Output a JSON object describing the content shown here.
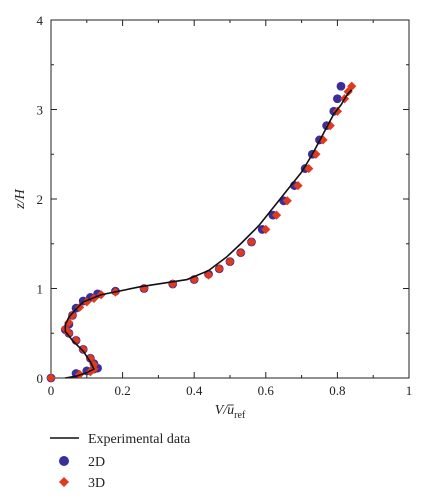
{
  "chart_data": {
    "type": "scatter",
    "xlabel": "V/ū_ref",
    "xlabel_main": "V/",
    "xlabel_u": "u",
    "xlabel_sub": "ref",
    "ylabel": "z/H",
    "xlim": [
      0,
      1
    ],
    "ylim": [
      0,
      4
    ],
    "xticks": [
      "0",
      "0.2",
      "0.4",
      "0.6",
      "0.8",
      "1"
    ],
    "yticks": [
      "0",
      "1",
      "2",
      "3",
      "4"
    ],
    "grid": false,
    "legend_position": "bottom-left",
    "colors": {
      "experimental": "#111111",
      "s2d": "#3a2e9a",
      "s3d": "#e03a1e"
    },
    "series": [
      {
        "name": "Experimental data",
        "kind": "line",
        "x": [
          0.04,
          0.07,
          0.1,
          0.12,
          0.11,
          0.09,
          0.06,
          0.04,
          0.04,
          0.05,
          0.07,
          0.09,
          0.14,
          0.25,
          0.38,
          0.44,
          0.49,
          0.53,
          0.58,
          0.62,
          0.66,
          0.7,
          0.73,
          0.75,
          0.77,
          0.79,
          0.81,
          0.82,
          0.83,
          0.84
        ],
        "y": [
          0.0,
          0.02,
          0.06,
          0.1,
          0.18,
          0.3,
          0.42,
          0.52,
          0.6,
          0.68,
          0.77,
          0.85,
          0.93,
          1.02,
          1.1,
          1.2,
          1.35,
          1.5,
          1.7,
          1.9,
          2.1,
          2.3,
          2.5,
          2.65,
          2.8,
          2.95,
          3.05,
          3.12,
          3.18,
          3.22
        ]
      },
      {
        "name": "2D",
        "kind": "circle",
        "x": [
          0.0,
          0.07,
          0.1,
          0.12,
          0.13,
          0.12,
          0.11,
          0.09,
          0.07,
          0.05,
          0.04,
          0.05,
          0.06,
          0.07,
          0.09,
          0.11,
          0.13,
          0.18,
          0.26,
          0.34,
          0.4,
          0.44,
          0.47,
          0.5,
          0.53,
          0.56,
          0.59,
          0.62,
          0.65,
          0.68,
          0.71,
          0.73,
          0.75,
          0.77,
          0.79,
          0.8,
          0.81
        ],
        "y": [
          0.0,
          0.05,
          0.08,
          0.1,
          0.11,
          0.16,
          0.22,
          0.32,
          0.42,
          0.5,
          0.54,
          0.6,
          0.7,
          0.78,
          0.86,
          0.9,
          0.94,
          0.97,
          1.0,
          1.05,
          1.1,
          1.16,
          1.22,
          1.3,
          1.4,
          1.52,
          1.66,
          1.82,
          1.98,
          2.15,
          2.34,
          2.5,
          2.66,
          2.82,
          2.98,
          3.12,
          3.26
        ]
      },
      {
        "name": "3D",
        "kind": "diamond",
        "x": [
          0.0,
          0.08,
          0.11,
          0.12,
          0.12,
          0.11,
          0.09,
          0.07,
          0.05,
          0.04,
          0.05,
          0.06,
          0.08,
          0.1,
          0.12,
          0.14,
          0.18,
          0.26,
          0.34,
          0.4,
          0.44,
          0.47,
          0.5,
          0.53,
          0.56,
          0.6,
          0.63,
          0.66,
          0.69,
          0.72,
          0.74,
          0.76,
          0.78,
          0.8,
          0.82,
          0.83,
          0.84
        ],
        "y": [
          0.0,
          0.04,
          0.07,
          0.1,
          0.15,
          0.22,
          0.32,
          0.42,
          0.5,
          0.55,
          0.62,
          0.7,
          0.79,
          0.85,
          0.89,
          0.93,
          0.96,
          1.0,
          1.05,
          1.1,
          1.15,
          1.22,
          1.3,
          1.4,
          1.52,
          1.66,
          1.82,
          1.98,
          2.15,
          2.34,
          2.5,
          2.66,
          2.82,
          2.98,
          3.12,
          3.2,
          3.26
        ]
      }
    ]
  }
}
